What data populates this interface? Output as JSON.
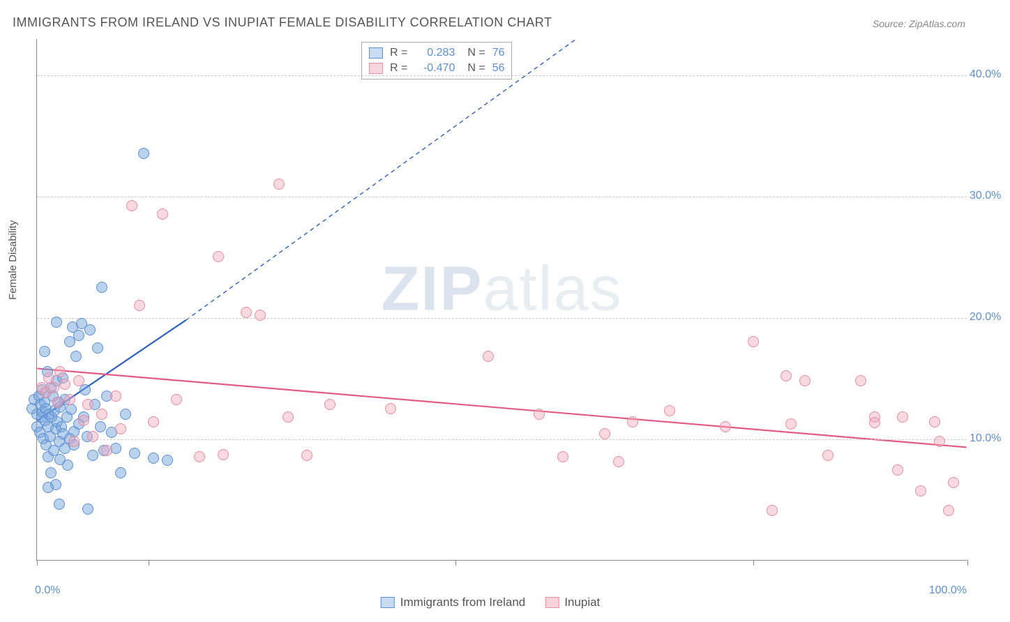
{
  "title": "IMMIGRANTS FROM IRELAND VS INUPIAT FEMALE DISABILITY CORRELATION CHART",
  "source": "Source: ZipAtlas.com",
  "watermark": {
    "bold": "ZIP",
    "light": "atlas"
  },
  "chart": {
    "type": "scatter",
    "xlabel": "",
    "ylabel": "Female Disability",
    "xlim": [
      0,
      100
    ],
    "ylim": [
      0,
      43
    ],
    "background_color": "#ffffff",
    "grid_color": "#cccccc",
    "axis_color": "#888888",
    "ytick_values": [
      10,
      20,
      30,
      40
    ],
    "ytick_labels": [
      "10.0%",
      "20.0%",
      "30.0%",
      "40.0%"
    ],
    "xtick_positions": [
      0,
      12,
      45,
      77,
      100
    ],
    "xtick_labels_left": "0.0%",
    "xtick_labels_right": "100.0%",
    "label_color": "#5b8fd6",
    "label_fontsize": 16,
    "title_fontsize": 18,
    "title_color": "#555555",
    "series": [
      {
        "name": "Immigrants from Ireland",
        "color_fill": "rgba(120,165,220,0.5)",
        "color_stroke": "#5b8fd6",
        "marker_size": 16,
        "r": "0.283",
        "n": "76",
        "trend": {
          "x1": 0,
          "y1": 11.5,
          "x2": 16,
          "y2": 19.8,
          "x2_dash": 58,
          "y2_dash": 43,
          "stroke": "#2b5fc4",
          "width": 2.2
        },
        "points": [
          [
            -0.5,
            12.5
          ],
          [
            -0.3,
            13.2
          ],
          [
            0,
            11
          ],
          [
            0,
            12
          ],
          [
            0.2,
            13.5
          ],
          [
            0.3,
            10.5
          ],
          [
            0.4,
            12.8
          ],
          [
            0.5,
            11.8
          ],
          [
            0.5,
            14
          ],
          [
            0.6,
            12.2
          ],
          [
            0.7,
            10
          ],
          [
            0.8,
            13
          ],
          [
            0.9,
            11.5
          ],
          [
            1,
            9.5
          ],
          [
            1,
            12.5
          ],
          [
            1,
            13.8
          ],
          [
            1.1,
            15.5
          ],
          [
            1.2,
            11
          ],
          [
            1.2,
            8.5
          ],
          [
            1.3,
            12
          ],
          [
            1.4,
            10.2
          ],
          [
            1.5,
            14.2
          ],
          [
            1.5,
            7.2
          ],
          [
            1.6,
            11.8
          ],
          [
            1.7,
            13.5
          ],
          [
            1.8,
            9
          ],
          [
            1.9,
            12.3
          ],
          [
            2,
            6.2
          ],
          [
            2,
            10.8
          ],
          [
            2.1,
            14.8
          ],
          [
            2.2,
            11.4
          ],
          [
            2.3,
            13
          ],
          [
            2.4,
            9.8
          ],
          [
            2.5,
            8.3
          ],
          [
            2.5,
            12.6
          ],
          [
            2.6,
            11
          ],
          [
            2.8,
            10.4
          ],
          [
            2.8,
            15
          ],
          [
            3,
            9.2
          ],
          [
            3,
            13.2
          ],
          [
            3.2,
            11.8
          ],
          [
            3.3,
            7.8
          ],
          [
            3.5,
            10
          ],
          [
            3.5,
            18
          ],
          [
            3.7,
            12.4
          ],
          [
            3.8,
            19.2
          ],
          [
            4,
            10.6
          ],
          [
            4,
            9.5
          ],
          [
            4.2,
            16.8
          ],
          [
            4.5,
            11.2
          ],
          [
            4.5,
            18.5
          ],
          [
            4.8,
            19.5
          ],
          [
            5,
            11.8
          ],
          [
            5.2,
            14
          ],
          [
            5.4,
            10.2
          ],
          [
            5.5,
            4.2
          ],
          [
            5.7,
            19
          ],
          [
            6,
            8.6
          ],
          [
            6.2,
            12.8
          ],
          [
            6.5,
            17.5
          ],
          [
            6.8,
            11
          ],
          [
            7,
            22.5
          ],
          [
            7.2,
            9
          ],
          [
            7.5,
            13.5
          ],
          [
            8,
            10.5
          ],
          [
            8.5,
            9.2
          ],
          [
            9,
            7.2
          ],
          [
            9.5,
            12
          ],
          [
            10.5,
            8.8
          ],
          [
            11.5,
            33.5
          ],
          [
            12.5,
            8.4
          ],
          [
            14,
            8.2
          ],
          [
            1.2,
            6
          ],
          [
            2.4,
            4.6
          ],
          [
            0.8,
            17.2
          ],
          [
            2.1,
            19.6
          ]
        ]
      },
      {
        "name": "Inupiat",
        "color_fill": "rgba(240,170,190,0.45)",
        "color_stroke": "#e68ca3",
        "marker_size": 16,
        "r": "-0.470",
        "n": "56",
        "trend": {
          "x1": 0,
          "y1": 15.8,
          "x2": 100,
          "y2": 9.3,
          "stroke": "#e35b82",
          "width": 2.2
        },
        "points": [
          [
            0.5,
            14.2
          ],
          [
            1,
            13.8
          ],
          [
            1.3,
            15
          ],
          [
            1.8,
            14.2
          ],
          [
            2.2,
            13
          ],
          [
            2.5,
            15.5
          ],
          [
            3,
            14.5
          ],
          [
            3.5,
            13.2
          ],
          [
            4,
            9.8
          ],
          [
            4.5,
            14.8
          ],
          [
            5,
            11.5
          ],
          [
            5.5,
            12.8
          ],
          [
            6,
            10.2
          ],
          [
            7,
            12
          ],
          [
            7.5,
            9
          ],
          [
            8.5,
            13.5
          ],
          [
            9,
            10.8
          ],
          [
            10.2,
            29.2
          ],
          [
            11,
            21
          ],
          [
            12.5,
            11.4
          ],
          [
            13.5,
            28.5
          ],
          [
            15,
            13.2
          ],
          [
            17.5,
            8.5
          ],
          [
            19.5,
            25
          ],
          [
            20,
            8.7
          ],
          [
            22.5,
            20.4
          ],
          [
            24,
            20.2
          ],
          [
            26,
            31
          ],
          [
            27,
            11.8
          ],
          [
            29,
            8.6
          ],
          [
            31.5,
            12.8
          ],
          [
            38,
            12.5
          ],
          [
            48.5,
            16.8
          ],
          [
            54,
            12
          ],
          [
            56.5,
            8.5
          ],
          [
            61,
            10.4
          ],
          [
            62.5,
            8.1
          ],
          [
            64,
            11.4
          ],
          [
            68,
            12.3
          ],
          [
            74,
            11
          ],
          [
            77,
            18
          ],
          [
            79,
            4.1
          ],
          [
            80.5,
            15.2
          ],
          [
            81,
            11.2
          ],
          [
            82.5,
            14.8
          ],
          [
            85,
            8.6
          ],
          [
            88.5,
            14.8
          ],
          [
            90,
            11.8
          ],
          [
            90,
            11.3
          ],
          [
            92.5,
            7.4
          ],
          [
            93,
            11.8
          ],
          [
            95,
            5.7
          ],
          [
            96.5,
            11.4
          ],
          [
            97,
            9.8
          ],
          [
            98,
            4.1
          ],
          [
            98.5,
            6.4
          ]
        ]
      }
    ],
    "bottom_legend": [
      {
        "label": "Immigrants from Ireland",
        "swatch": "blue"
      },
      {
        "label": "Inupiat",
        "swatch": "pink"
      }
    ]
  }
}
